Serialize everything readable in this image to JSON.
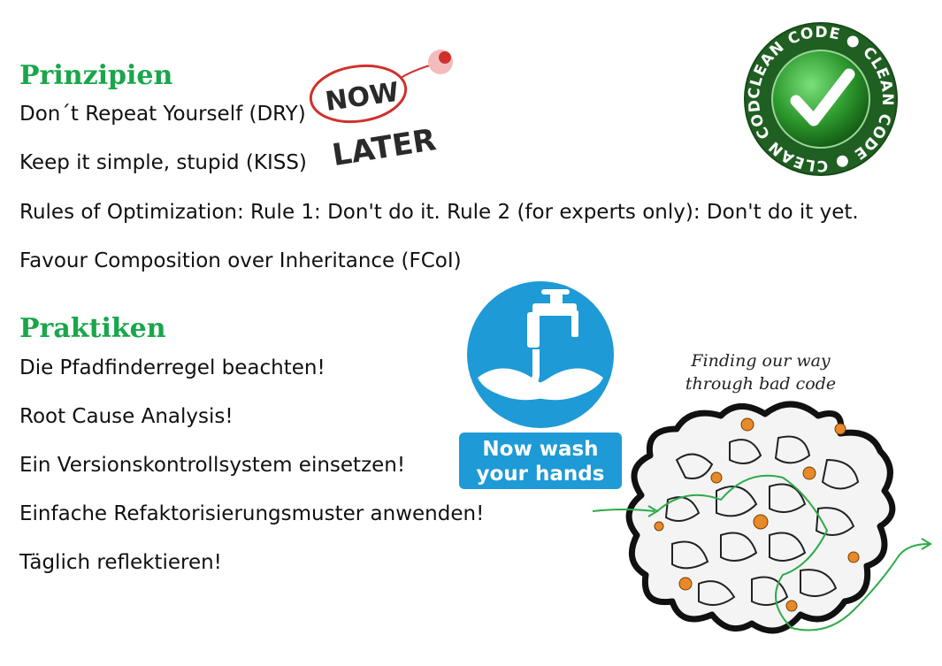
{
  "prinzipien": {
    "heading": "Prinzipien",
    "items": [
      "Don´t Repeat Yourself (DRY)",
      "Keep it simple, stupid (KISS)",
      "Rules of Optimization: Rule 1: Don't do it. Rule 2 (for experts only): Don't do it yet.",
      "Favour Composition over Inheritance (FCoI)"
    ]
  },
  "praktiken": {
    "heading": "Praktiken",
    "items": [
      "Die Pfadfinderregel beachten!",
      "Root Cause Analysis!",
      "Ein Versionskontrollsystem einsetzen!",
      "Einfache Refaktorisierungsmuster anwenden!",
      "Täglich reflektieren!"
    ]
  },
  "images": {
    "now_later": {
      "word1": "NOW",
      "word2": "LATER"
    },
    "clean_code": {
      "text": "CLEAN CODE ● CLEAN CODE ● CLEAN CODE ● "
    },
    "wash_hands": {
      "line1": "Now wash",
      "line2": "your hands"
    },
    "maze": {
      "line1": "Finding our way",
      "line2": "through bad code"
    }
  },
  "colors": {
    "heading": "#1aa64b",
    "sign_blue": "#1e9ad6",
    "seal_green": "#2e8b2e",
    "now_red": "#d0312d",
    "maze_green": "#2eaa4a",
    "maze_orange": "#e8892a"
  }
}
